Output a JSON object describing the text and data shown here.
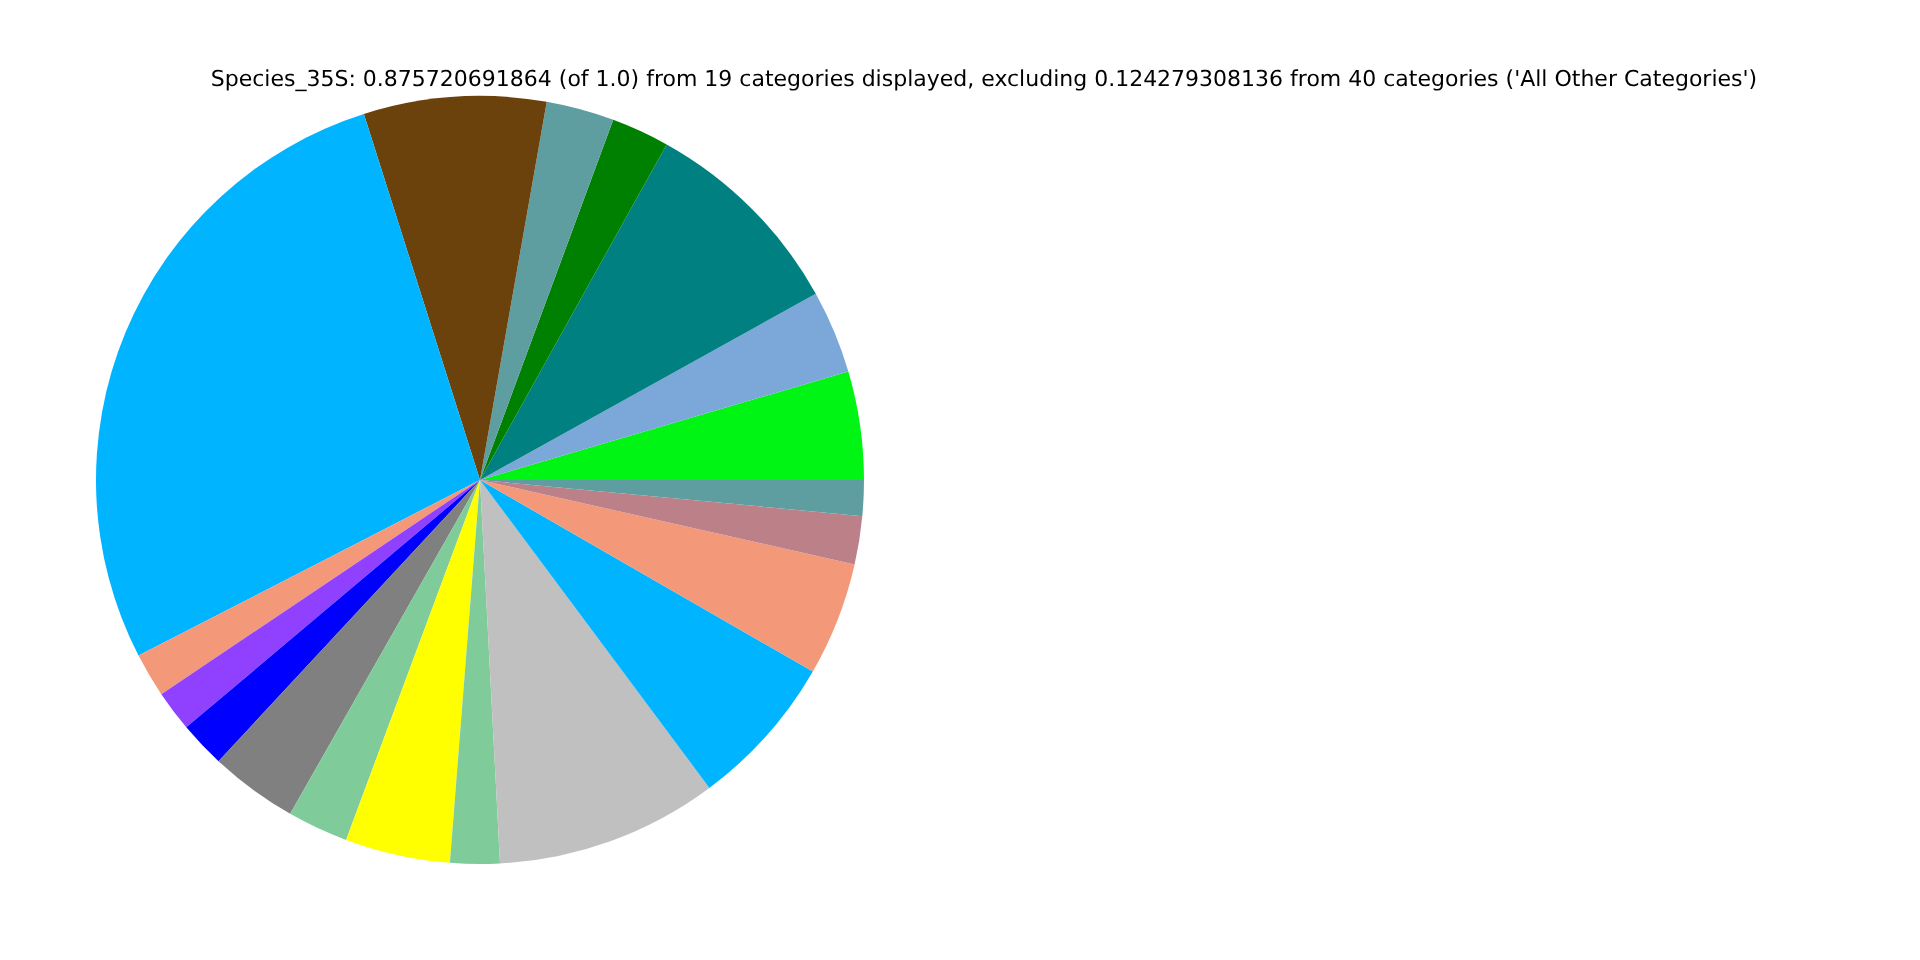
{
  "chart_data": {
    "type": "pie",
    "title": "Species_35S: 0.875720691864 (of 1.0) from 19 categories displayed, excluding 0.124279308136 from 40 categories ('All Other Categories')",
    "categories": [
      null,
      null,
      null,
      null,
      null,
      null,
      null,
      null,
      null,
      null,
      null,
      null,
      null,
      null,
      null,
      null,
      null,
      null,
      null
    ],
    "values": [
      4.56,
      3.5,
      8.86,
      2.44,
      2.86,
      7.67,
      27.67,
      1.86,
      1.72,
      1.94,
      3.69,
      2.56,
      4.42,
      2.08,
      9.36,
      6.5,
      4.78,
      2.03,
      1.5
    ],
    "colors": [
      "#00f514",
      "#7ba7d9",
      "#008080",
      "#008000",
      "#5f9ea0",
      "#6b420c",
      "#00b4ff",
      "#f4987a",
      "#9040ff",
      "#0000ff",
      "#808080",
      "#80cb9a",
      "#ffff00",
      "#80cb9a",
      "#c0c0c0",
      "#00b4ff",
      "#f4987a",
      "#bc8088",
      "#5f9ea0"
    ]
  }
}
